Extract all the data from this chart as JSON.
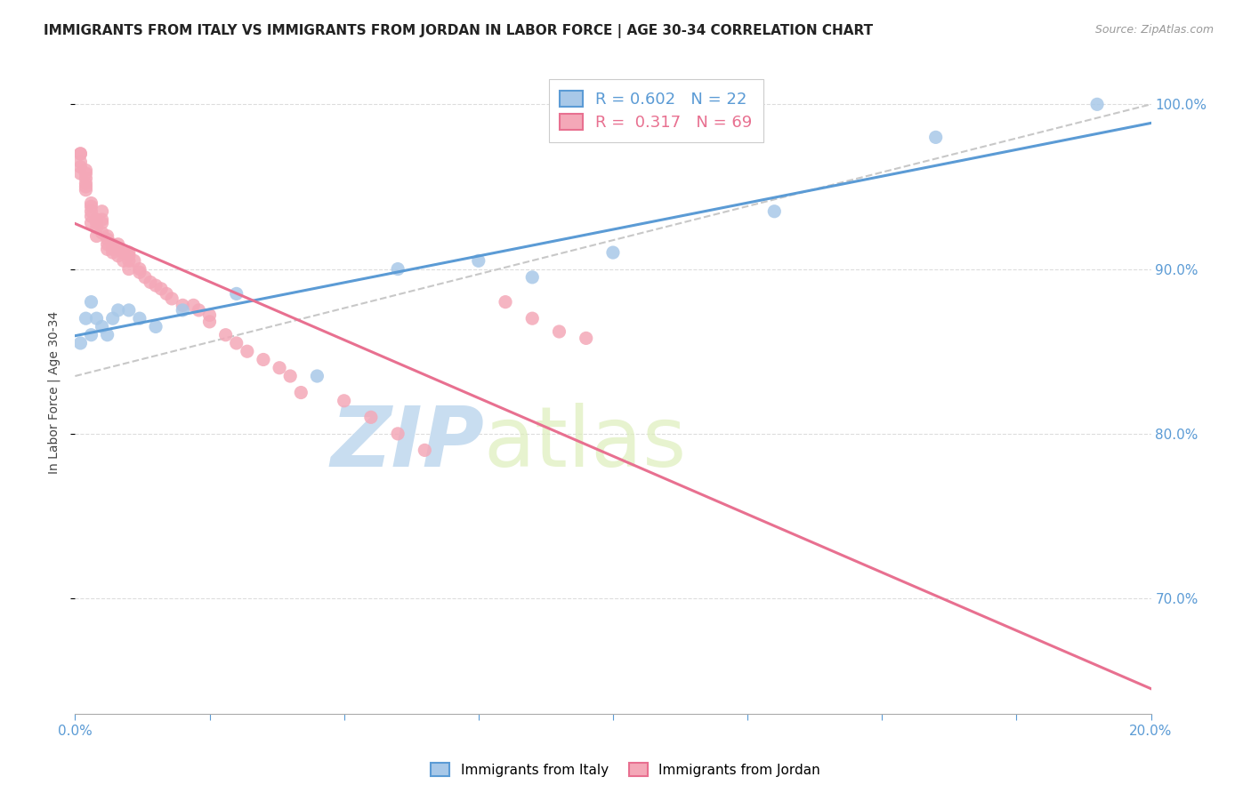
{
  "title": "IMMIGRANTS FROM ITALY VS IMMIGRANTS FROM JORDAN IN LABOR FORCE | AGE 30-34 CORRELATION CHART",
  "source": "Source: ZipAtlas.com",
  "ylabel": "In Labor Force | Age 30-34",
  "xlim": [
    0.0,
    0.2
  ],
  "ylim": [
    0.63,
    1.02
  ],
  "yticks": [
    0.7,
    0.8,
    0.9,
    1.0
  ],
  "xticks": [
    0.0,
    0.025,
    0.05,
    0.075,
    0.1,
    0.125,
    0.15,
    0.175,
    0.2
  ],
  "italy_R": 0.602,
  "italy_N": 22,
  "jordan_R": 0.317,
  "jordan_N": 69,
  "italy_color": "#a8c8e8",
  "jordan_color": "#f4a8b8",
  "italy_line_color": "#5b9bd5",
  "jordan_line_color": "#e87090",
  "italy_x": [
    0.001,
    0.002,
    0.003,
    0.003,
    0.004,
    0.005,
    0.006,
    0.007,
    0.008,
    0.01,
    0.012,
    0.015,
    0.02,
    0.03,
    0.045,
    0.06,
    0.075,
    0.085,
    0.1,
    0.13,
    0.16,
    0.19
  ],
  "italy_y": [
    0.855,
    0.87,
    0.86,
    0.88,
    0.87,
    0.865,
    0.86,
    0.87,
    0.875,
    0.875,
    0.87,
    0.865,
    0.875,
    0.885,
    0.835,
    0.9,
    0.905,
    0.895,
    0.91,
    0.935,
    0.98,
    1.0
  ],
  "jordan_x": [
    0.001,
    0.001,
    0.001,
    0.001,
    0.001,
    0.002,
    0.002,
    0.002,
    0.002,
    0.002,
    0.002,
    0.003,
    0.003,
    0.003,
    0.003,
    0.003,
    0.004,
    0.004,
    0.004,
    0.004,
    0.005,
    0.005,
    0.005,
    0.005,
    0.006,
    0.006,
    0.006,
    0.006,
    0.007,
    0.007,
    0.007,
    0.008,
    0.008,
    0.008,
    0.009,
    0.009,
    0.01,
    0.01,
    0.01,
    0.01,
    0.011,
    0.012,
    0.012,
    0.013,
    0.014,
    0.015,
    0.016,
    0.017,
    0.018,
    0.02,
    0.022,
    0.023,
    0.025,
    0.025,
    0.028,
    0.03,
    0.032,
    0.035,
    0.038,
    0.04,
    0.042,
    0.05,
    0.055,
    0.06,
    0.065,
    0.08,
    0.085,
    0.09,
    0.095
  ],
  "jordan_y": [
    0.97,
    0.97,
    0.965,
    0.962,
    0.958,
    0.96,
    0.958,
    0.955,
    0.952,
    0.95,
    0.948,
    0.94,
    0.938,
    0.935,
    0.932,
    0.928,
    0.93,
    0.928,
    0.925,
    0.92,
    0.935,
    0.93,
    0.928,
    0.922,
    0.92,
    0.918,
    0.915,
    0.912,
    0.915,
    0.912,
    0.91,
    0.915,
    0.912,
    0.908,
    0.91,
    0.905,
    0.91,
    0.908,
    0.905,
    0.9,
    0.905,
    0.9,
    0.898,
    0.895,
    0.892,
    0.89,
    0.888,
    0.885,
    0.882,
    0.878,
    0.878,
    0.875,
    0.872,
    0.868,
    0.86,
    0.855,
    0.85,
    0.845,
    0.84,
    0.835,
    0.825,
    0.82,
    0.81,
    0.8,
    0.79,
    0.88,
    0.87,
    0.862,
    0.858
  ],
  "watermark_zip": "ZIP",
  "watermark_atlas": "atlas",
  "watermark_color": "#ddeeff",
  "background_color": "#ffffff",
  "title_fontsize": 11,
  "legend_fontsize": 13,
  "tick_fontsize": 11
}
